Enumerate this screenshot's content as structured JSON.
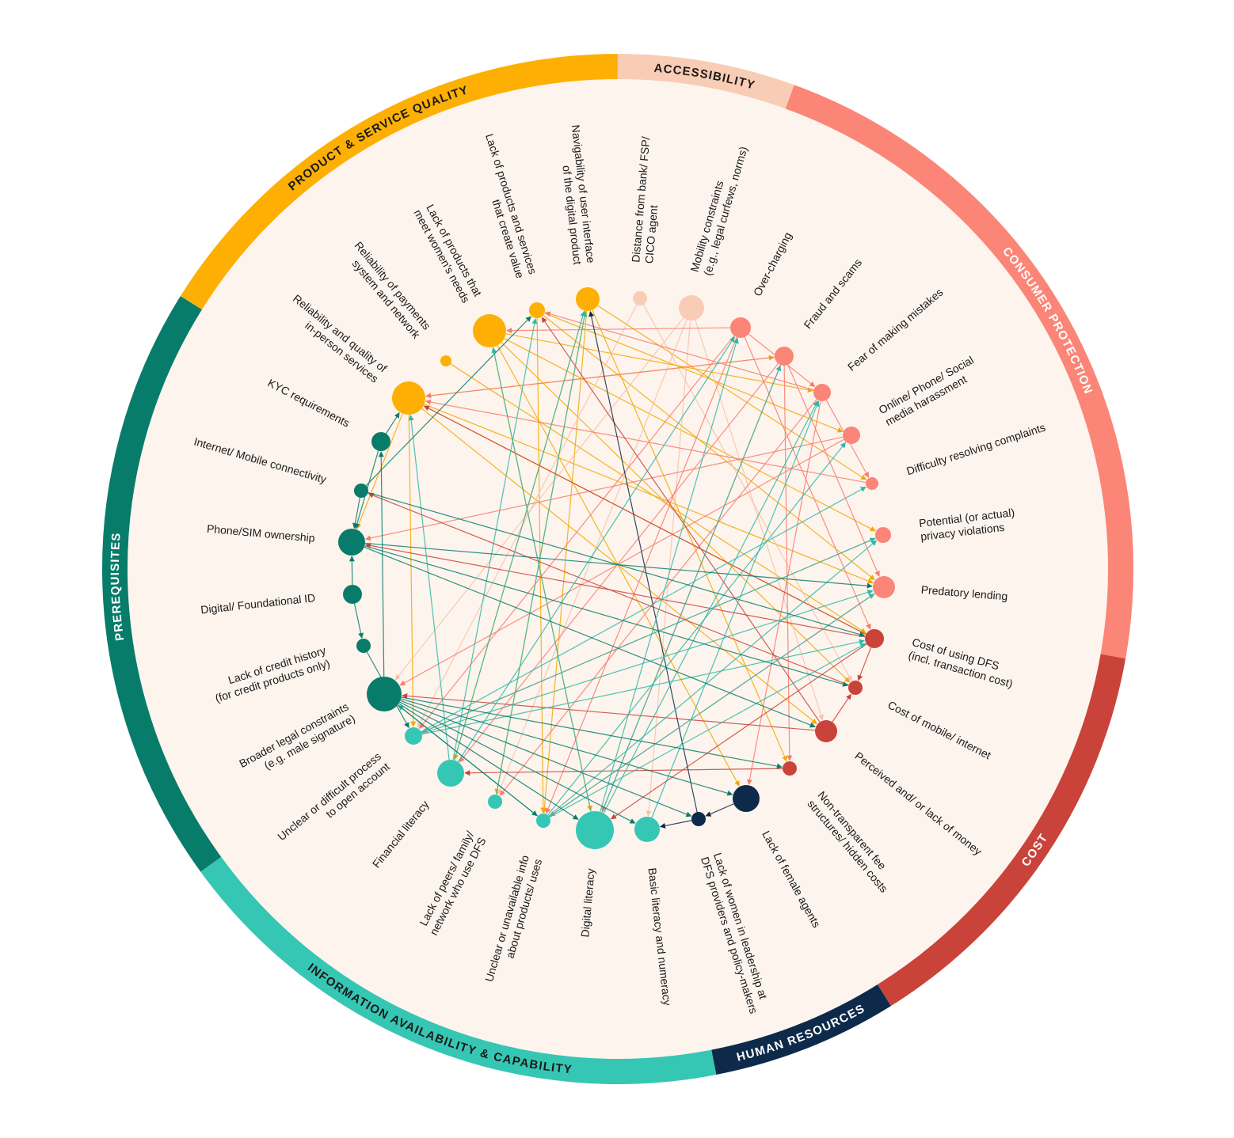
{
  "segments": [
    {
      "label": "ACCESSIBILITY"
    },
    {
      "label": "CONSUMER PROTECTION"
    },
    {
      "label": "COST"
    },
    {
      "label": "HUMAN RESOURCES"
    },
    {
      "label": "INFORMATION AVAILABILITY & CAPABILITY"
    },
    {
      "label": "PREREQUISITES"
    },
    {
      "label": "PRODUCT & SERVICE QUALITY"
    }
  ],
  "nodes": [
    {
      "label": [
        "Reliability and quality of",
        "in-person services"
      ]
    },
    {
      "label": [
        "Reliability of payments",
        "system and network"
      ]
    },
    {
      "label": [
        "Lack of products that",
        "meet women's needs"
      ]
    },
    {
      "label": [
        "Lack of products and services",
        "that create value"
      ]
    },
    {
      "label": [
        "Navigability of user interface",
        "of the digital product"
      ]
    },
    {
      "label": [
        "Distance from bank/ FSP/",
        "CICO agent"
      ]
    },
    {
      "label": [
        "Mobility constraints",
        "(e.g., legal curfews, norms)"
      ]
    },
    {
      "label": [
        "Over-charging"
      ]
    },
    {
      "label": [
        "Fraud and scams"
      ]
    },
    {
      "label": [
        "Fear of making mistakes"
      ]
    },
    {
      "label": [
        "Online/ Phone/ Social",
        "media harassment"
      ]
    },
    {
      "label": [
        "Difficulty resolving complaints"
      ]
    },
    {
      "label": [
        "Potential (or actual)",
        "privacy violations"
      ]
    },
    {
      "label": [
        "Predatory lending"
      ]
    },
    {
      "label": [
        "Cost of using DFS",
        "(incl. transaction cost)"
      ]
    },
    {
      "label": [
        "Cost of mobile/ internet"
      ]
    },
    {
      "label": [
        "Perceived and/ or lack of money"
      ]
    },
    {
      "label": [
        "Non-transparent fee",
        "structures/ hidden costs"
      ]
    },
    {
      "label": [
        "Lack of female agents"
      ]
    },
    {
      "label": [
        "Lack of women in leadership at",
        "DFS providers and policy-makers"
      ]
    },
    {
      "label": [
        "Basic literacy and numeracy"
      ]
    },
    {
      "label": [
        "Digital literacy"
      ]
    },
    {
      "label": [
        "Unclear or unavailable info",
        "about products/ uses"
      ]
    },
    {
      "label": [
        "Lack of peers/ family/",
        "network who use DFS"
      ]
    },
    {
      "label": [
        "Financial literacy"
      ]
    },
    {
      "label": [
        "Unclear or difficult process",
        "to open account"
      ]
    },
    {
      "label": [
        "Broader legal constraints",
        "(e.g. male signature)"
      ]
    },
    {
      "label": [
        "Lack of credit history",
        "(for credit products only)"
      ]
    },
    {
      "label": [
        "Digital/ Foundational ID"
      ]
    },
    {
      "label": [
        "Phone/SIM ownership"
      ]
    },
    {
      "label": [
        "Internet/ Mobile connectivity"
      ]
    },
    {
      "label": [
        "KYC requirements"
      ]
    }
  ]
}
